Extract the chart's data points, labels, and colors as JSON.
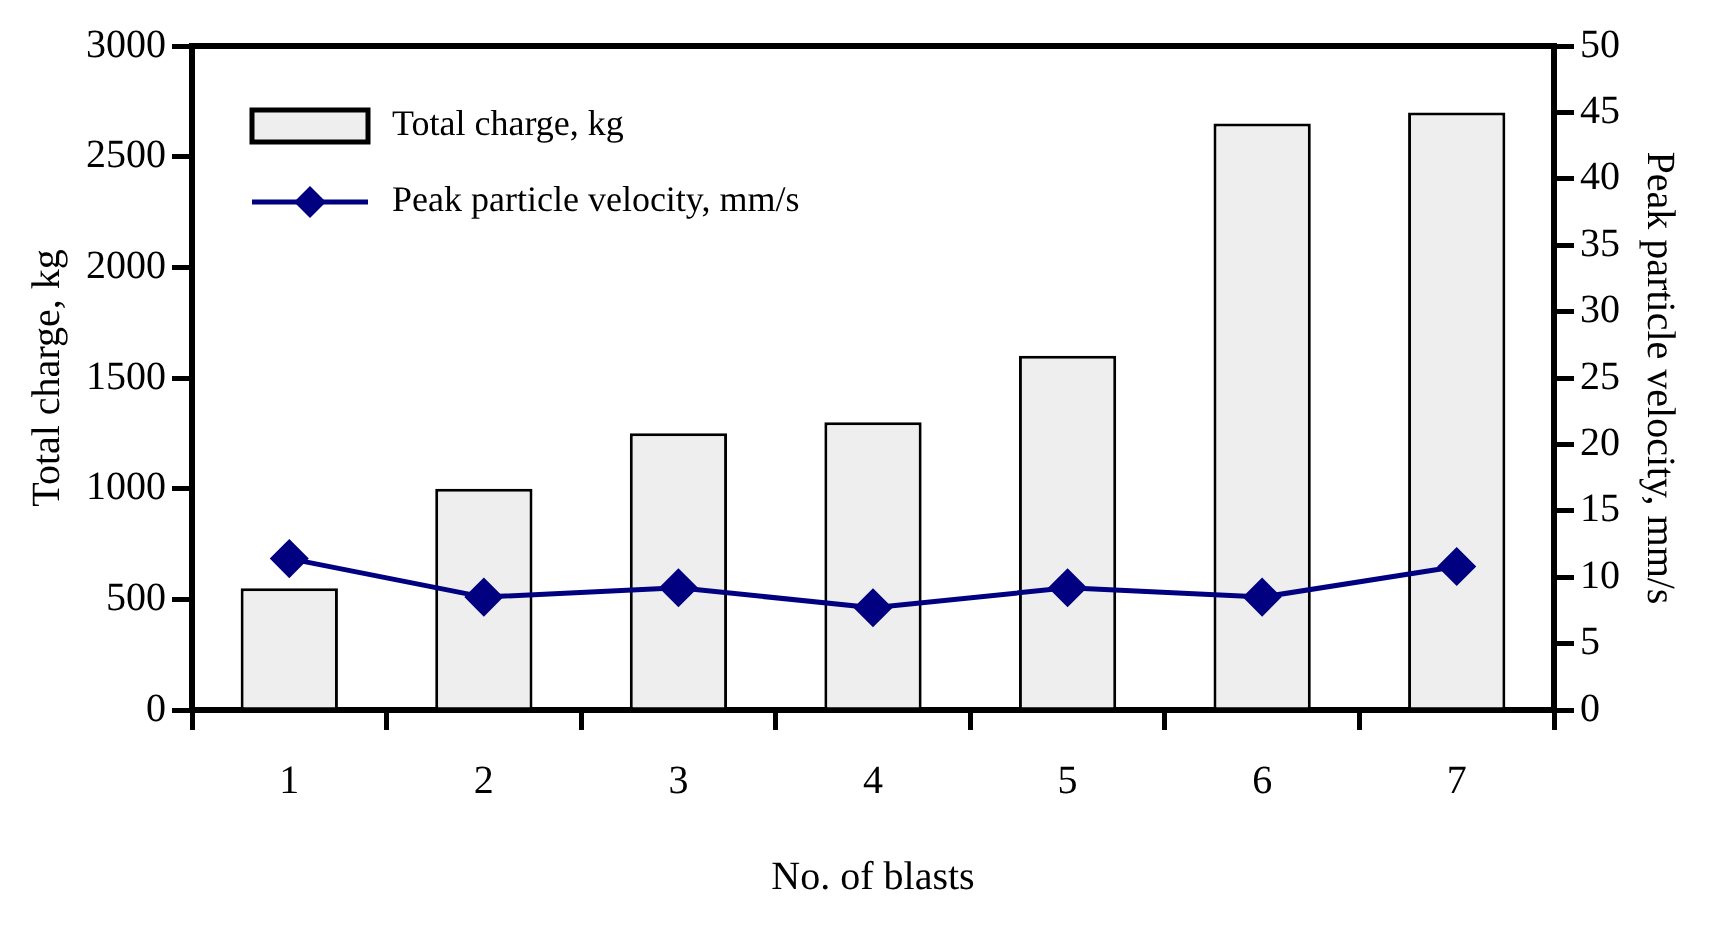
{
  "chart_data": {
    "type": "bar",
    "xlabel": "No. of blasts",
    "ylabel": "Total charge, kg",
    "y2label": "Peak particle velocity, mm/s",
    "categories": [
      "1",
      "2",
      "3",
      "4",
      "5",
      "6",
      "7"
    ],
    "series": [
      {
        "name": "Total charge, kg",
        "color": "#eeeeee",
        "values": [
          550,
          1000,
          1250,
          1300,
          1600,
          2650,
          2700
        ]
      },
      {
        "name": "Peak particle velocity, mm/s",
        "type": "line",
        "axis": "y2",
        "color": "#000080",
        "values": [
          11.4,
          8.5,
          9.2,
          7.7,
          9.2,
          8.5,
          10.8
        ]
      }
    ],
    "ylim": [
      0,
      3000
    ],
    "yticks": [
      0,
      500,
      1000,
      1500,
      2000,
      2500,
      3000
    ],
    "y2lim": [
      0,
      50
    ],
    "y2ticks": [
      0,
      5,
      10,
      15,
      20,
      25,
      30,
      35,
      40,
      45,
      50
    ],
    "marker": "diamond",
    "legend": "top left",
    "grid": false
  }
}
